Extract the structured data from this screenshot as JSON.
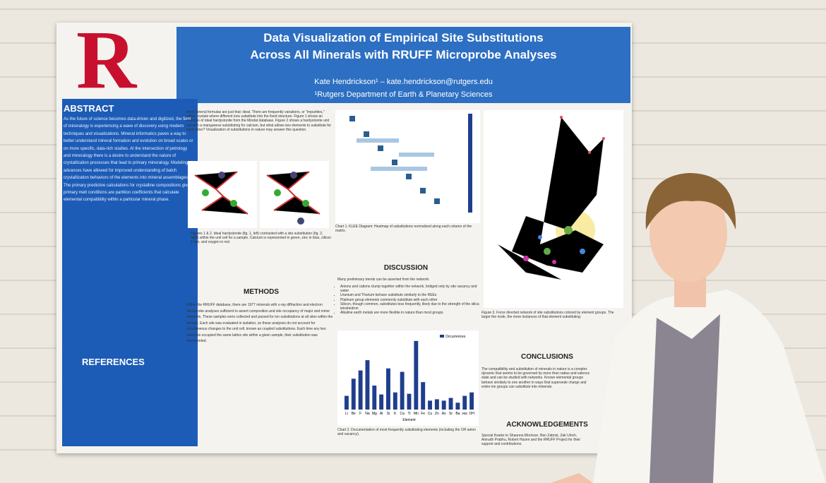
{
  "poster": {
    "logo": "R",
    "title_line1": "Data Visualization of Empirical Site Substitutions",
    "title_line2": "Across All Minerals with RRUFF Microprobe Analyses",
    "author": "Kate Hendrickson¹ – kate.hendrickson@rutgers.edu",
    "affiliation": "¹Rutgers Department of Earth & Planetary Sciences",
    "abstract_heading": "ABSTRACT",
    "abstract_text": "As the future of science becomes data-driven and digitized, the field of mineralogy is experiencing a wave of discovery using modern techniques and visualizations. Mineral informatics paves a way to better understand mineral formation and evolution on broad scales or on more specific, data-rich studies. At the intersection of petrology and mineralogy there is a desire to understand the nature of crystallization processes that lead to primary mineralogy. Modeling advances have allowed for improved understanding of batch crystallization behaviors of the elements into mineral assemblages. The primary predictive calculations for crystalline compositions given primary melt conditions are partition coefficients that calculate elemental compatibility within a particular mineral phase.",
    "references_heading": "REFERENCES",
    "intro_text": "Ideal mineral formulas are just that: ideal. There are frequently variations, or \"impurities,\" within crystals where different ions substitute into the fixed structure. Figure 1 shows an example of ideal hardystonite from the Mindat database. Figure 2 shows a hardystonite unit cell with a manganese substituting for calcium, but what allows two elements to substitute for each other? Visualization of substitutions in nature may answer this question.",
    "fig12_caption": "Figures 1 & 2. Ideal hardystonite (fig. 1, left) contrasted with a site substitution (fig. 2, right) within the unit cell for a sample. Calcium is represented in green, zinc in blue, silicon in tan, and oxygen in red.",
    "methods_heading": "METHODS",
    "methods_text": "Within the RRUFF database, there are 1977 minerals with x-ray diffraction and electron microprobe analyses sufficient to assert composition and site occupancy of major and minor elements. These samples were collected and parsed for ion substitutions at all sites within the mineral. Each site was evaluated in isolation, so these analyses do not account for simultaneous changes to the unit cell, known as coupled substitutions. Each time any two elements occupied the same lattice site within a given sample, their substitution was documented.",
    "chart1_caption": "Chart 1. KLEE Diagram: Heatmap of substitutions normalized along each column of the matrix.",
    "discussion_heading": "DISCUSSION",
    "discussion_intro": "Many preliminary trends can be asserted from the network:",
    "discussion_points": [
      "Anions and cations clump together within the network, bridged only by site vacancy and water",
      "Uranium and Thorium behave substitute similarly to the REEs",
      "Platinum group elements commonly substitute with each other",
      "Silicon, though common, substitutes less frequently, likely due to the strength of the silica tetrahedron",
      "Alkaline earth metals are more flexible in nature than most groups"
    ],
    "chart2_caption": "Chart 2. Documentation of most frequently substituting elements (including the OH anion and vacancy).",
    "fig3_caption": "Figure 3. Force directed network of site substitutions colored by element groups. The larger the node, the more instances of that element substituting.",
    "conclusions_heading": "CONCLUSIONS",
    "conclusions_text": "The compatibility and substitution of minerals in nature is a complex dynamic that seems to be governed by more than radius and valence state and can be studied with networks. Known elemental groups behave similarly to one another in ways that supersede charge and entire ion groups can substitute into minerals.",
    "ack_heading": "ACKNOWLEDGEMENTS",
    "ack_text": "Special thanks to Shaunna Morrison, Ben Zabrist, Zak Ulrich, Anirudh Prabhu, Robert Hazen and the RRUFF Project for their support and contributions."
  },
  "chart_data": {
    "type": "bar",
    "legend": "Occurrences",
    "x_label": "Element",
    "color": "#1f3e8c",
    "categories": [
      "Li",
      "Be",
      "F",
      "Na",
      "Mg",
      "Al",
      "Si",
      "K",
      "Ca",
      "Ti",
      "Mn",
      "Fe",
      "Cu",
      "Zn",
      "As",
      "Sr",
      "Ba",
      "vac",
      "OH"
    ],
    "values": [
      20,
      45,
      57,
      72,
      35,
      22,
      60,
      25,
      55,
      23,
      100,
      40,
      13,
      15,
      13,
      17,
      10,
      20,
      25
    ],
    "ylim": [
      0,
      105
    ]
  }
}
